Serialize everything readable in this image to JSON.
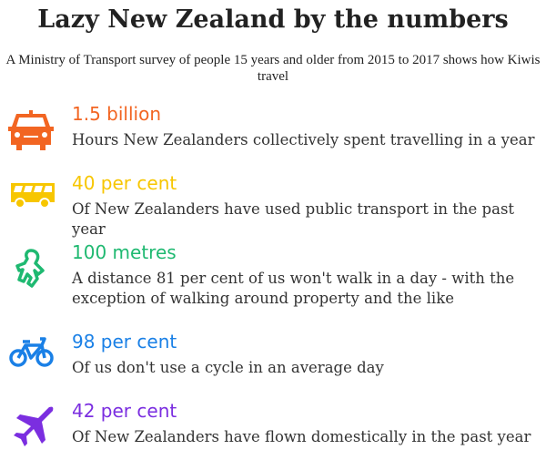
{
  "title": "Lazy New Zealand by the numbers",
  "subtitle": "A Ministry of Transport survey of people 15 years and older from 2015 to 2017 shows how Kiwis travel",
  "items": [
    {
      "icon": "car-icon",
      "color": "#f26522",
      "stat": "1.5 billion",
      "desc": "Hours New Zealanders collectively spent travelling in a year"
    },
    {
      "icon": "bus-icon",
      "color": "#f7c600",
      "stat": "40 per cent",
      "desc": "Of New Zealanders have used public transport in the past year"
    },
    {
      "icon": "walking-person-icon",
      "color": "#1fb971",
      "stat": "100 metres",
      "desc": "A distance 81 per cent of us won't walk in a day -  with the exception of walking around property and the like"
    },
    {
      "icon": "bicycle-icon",
      "color": "#1a80e6",
      "stat": "98 per cent",
      "desc": "Of us don't use a cycle in an average day"
    },
    {
      "icon": "airplane-icon",
      "color": "#7b2ee0",
      "stat": "42 per cent",
      "desc": "Of New Zealanders have flown domestically in the past year"
    }
  ]
}
